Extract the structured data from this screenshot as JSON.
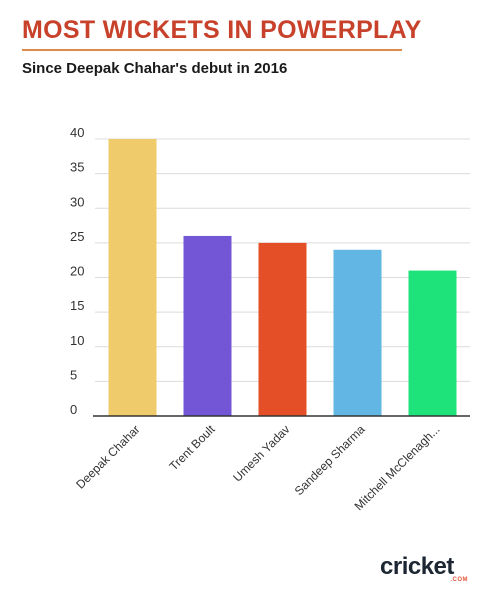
{
  "header": {
    "title": "MOST WICKETS IN POWERPLAY",
    "subtitle": "Since Deepak Chahar's debut in 2016"
  },
  "brand": {
    "logo_text": "cricket",
    "logo_suffix": ".COM",
    "accent": "#e5573c"
  },
  "colors": {
    "title": "#c8412b",
    "grid": "#dcdcdc",
    "axis": "#333333"
  },
  "chart_data": {
    "type": "bar",
    "title": "MOST WICKETS IN POWERPLAY",
    "subtitle": "Since Deepak Chahar's debut in 2016",
    "xlabel": "",
    "ylabel": "",
    "categories": [
      "Deepak Chahar",
      "Trent Boult",
      "Umesh Yadav",
      "Sandeep Sharma",
      "Mitchell McClenagh..."
    ],
    "values": [
      40,
      26,
      25,
      24,
      21
    ],
    "bar_colors": [
      "#efcb6b",
      "#7356d6",
      "#e44f27",
      "#62b6e4",
      "#1ee37b"
    ],
    "ylim": [
      0,
      40
    ],
    "yticks": [
      0,
      5,
      10,
      15,
      20,
      25,
      30,
      35,
      40
    ],
    "grid": true,
    "legend": "none"
  }
}
